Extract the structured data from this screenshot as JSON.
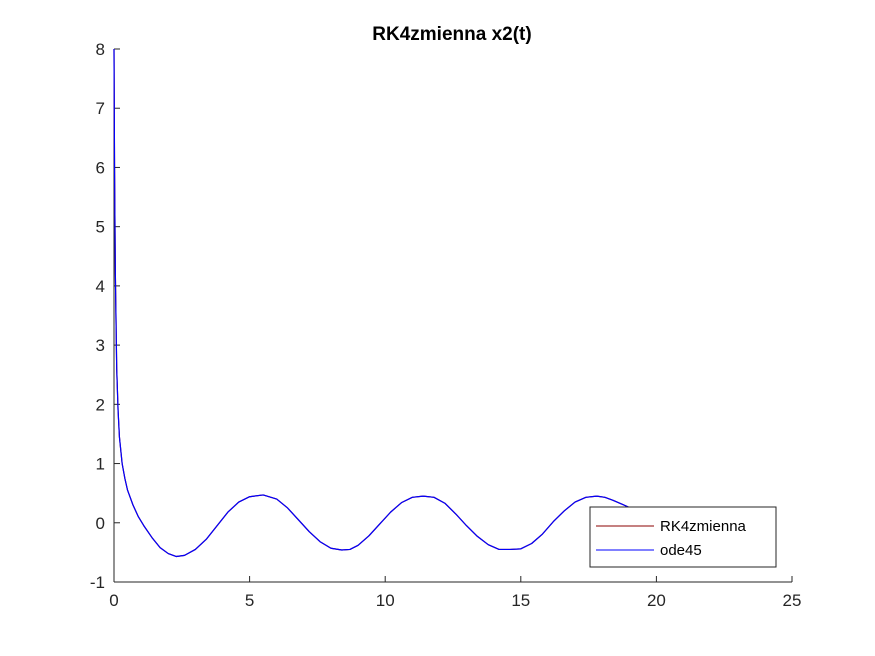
{
  "chart_data": {
    "type": "line",
    "title": "RK4zmienna x2(t)",
    "xlabel": "",
    "ylabel": "",
    "xlim": [
      0,
      25
    ],
    "ylim": [
      -1,
      8
    ],
    "x_ticks": [
      0,
      5,
      10,
      15,
      20,
      25
    ],
    "x_tick_labels": [
      "0",
      "5",
      "10",
      "15",
      "20",
      "25"
    ],
    "y_ticks": [
      -1,
      0,
      1,
      2,
      3,
      4,
      5,
      6,
      7,
      8
    ],
    "y_tick_labels": [
      "-1",
      "0",
      "1",
      "2",
      "3",
      "4",
      "5",
      "6",
      "7",
      "8"
    ],
    "grid": false,
    "legend": {
      "position": "bottom-right",
      "entries": [
        "RK4zmienna",
        "ode45"
      ]
    },
    "series": [
      {
        "name": "RK4zmienna",
        "color": "#8b0000",
        "x": [
          0,
          0.02,
          0.05,
          0.1,
          0.15,
          0.2,
          0.3,
          0.4,
          0.5,
          0.7,
          0.9,
          1.1,
          1.4,
          1.7,
          2.0,
          2.3,
          2.6,
          3.0,
          3.4,
          3.8,
          4.2,
          4.6,
          5.0,
          5.5,
          6.0,
          6.4,
          6.8,
          7.2,
          7.6,
          8.0,
          8.4,
          8.7,
          9.0,
          9.4,
          9.8,
          10.2,
          10.6,
          11.0,
          11.4,
          11.8,
          12.2,
          12.6,
          13.0,
          13.4,
          13.8,
          14.2,
          14.6,
          15.0,
          15.4,
          15.8,
          16.2,
          16.6,
          17.0,
          17.4,
          17.8,
          18.1,
          18.4,
          18.7,
          19.0,
          19.2
        ],
        "y": [
          8.0,
          6.0,
          4.2,
          2.6,
          1.9,
          1.45,
          1.0,
          0.75,
          0.55,
          0.3,
          0.1,
          -0.05,
          -0.25,
          -0.42,
          -0.52,
          -0.57,
          -0.55,
          -0.45,
          -0.28,
          -0.05,
          0.18,
          0.35,
          0.44,
          0.47,
          0.4,
          0.25,
          0.05,
          -0.15,
          -0.32,
          -0.43,
          -0.46,
          -0.45,
          -0.38,
          -0.22,
          -0.02,
          0.18,
          0.34,
          0.43,
          0.45,
          0.43,
          0.33,
          0.15,
          -0.05,
          -0.23,
          -0.37,
          -0.45,
          -0.45,
          -0.44,
          -0.35,
          -0.19,
          0.02,
          0.2,
          0.35,
          0.43,
          0.45,
          0.43,
          0.38,
          0.32,
          0.26,
          0.24
        ]
      },
      {
        "name": "ode45",
        "color": "#0000ff",
        "x": [
          0,
          0.02,
          0.05,
          0.1,
          0.15,
          0.2,
          0.3,
          0.4,
          0.5,
          0.7,
          0.9,
          1.1,
          1.4,
          1.7,
          2.0,
          2.3,
          2.6,
          3.0,
          3.4,
          3.8,
          4.2,
          4.6,
          5.0,
          5.5,
          6.0,
          6.4,
          6.8,
          7.2,
          7.6,
          8.0,
          8.4,
          8.7,
          9.0,
          9.4,
          9.8,
          10.2,
          10.6,
          11.0,
          11.4,
          11.8,
          12.2,
          12.6,
          13.0,
          13.4,
          13.8,
          14.2,
          14.6,
          15.0,
          15.4,
          15.8,
          16.2,
          16.6,
          17.0,
          17.4,
          17.8,
          18.1,
          18.4,
          18.7,
          19.0,
          19.2
        ],
        "y": [
          8.0,
          6.0,
          4.2,
          2.6,
          1.9,
          1.45,
          1.0,
          0.75,
          0.55,
          0.3,
          0.1,
          -0.05,
          -0.25,
          -0.42,
          -0.52,
          -0.57,
          -0.55,
          -0.45,
          -0.28,
          -0.05,
          0.18,
          0.35,
          0.44,
          0.47,
          0.4,
          0.25,
          0.05,
          -0.15,
          -0.32,
          -0.43,
          -0.46,
          -0.45,
          -0.38,
          -0.22,
          -0.02,
          0.18,
          0.34,
          0.43,
          0.45,
          0.43,
          0.33,
          0.15,
          -0.05,
          -0.23,
          -0.37,
          -0.45,
          -0.45,
          -0.44,
          -0.35,
          -0.19,
          0.02,
          0.2,
          0.35,
          0.43,
          0.45,
          0.43,
          0.38,
          0.32,
          0.26,
          0.24
        ]
      }
    ]
  }
}
